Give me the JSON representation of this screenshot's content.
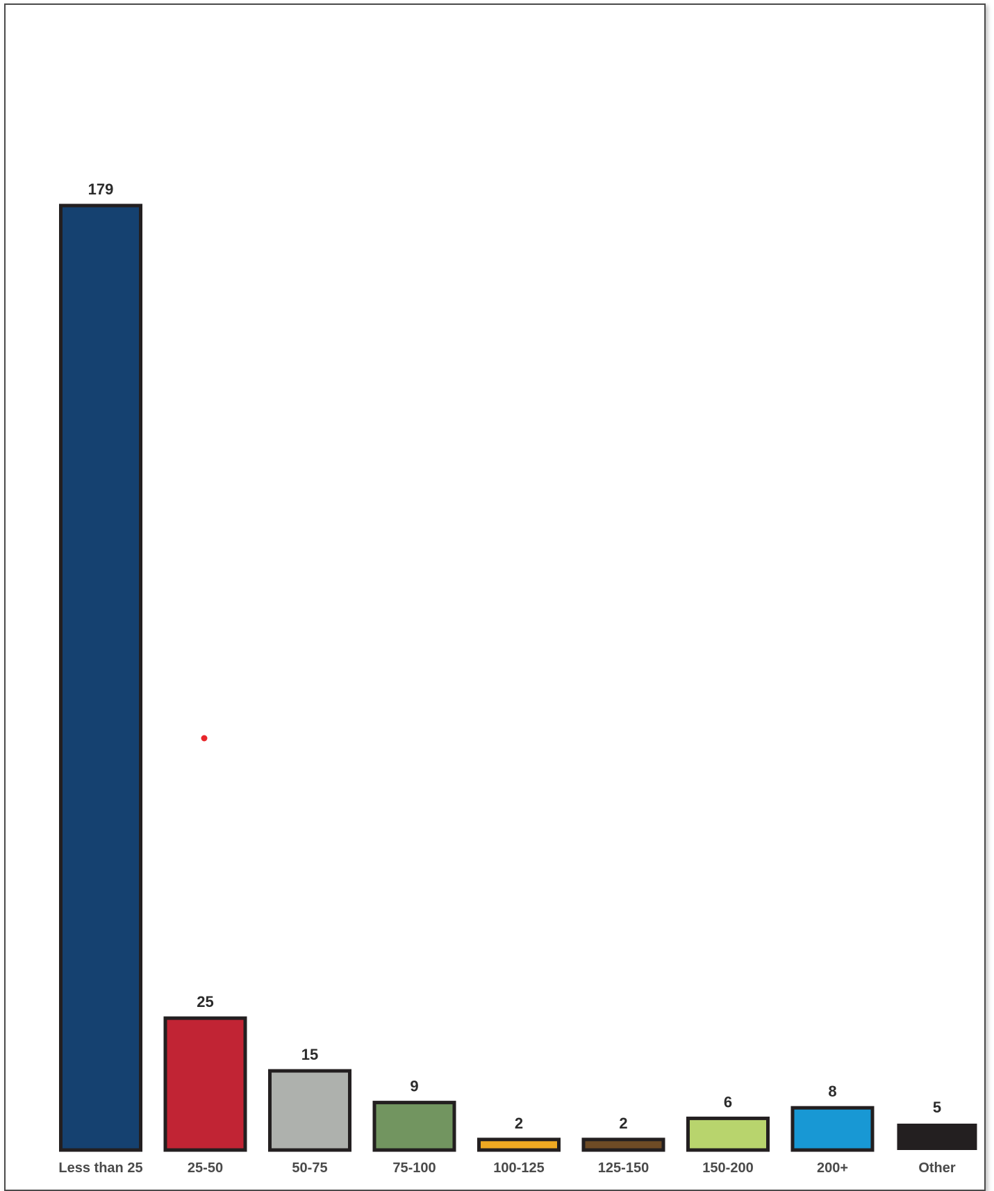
{
  "chart_data": {
    "type": "bar",
    "categories": [
      "Less than 25",
      "25-50",
      "50-75",
      "75-100",
      "100-125",
      "125-150",
      "150-200",
      "200+",
      "Other"
    ],
    "values": [
      179,
      25,
      15,
      9,
      2,
      2,
      6,
      8,
      5
    ],
    "data_labels": [
      "179",
      "25",
      "15",
      "9",
      "2",
      "2",
      "6",
      "8",
      "5"
    ],
    "colors": [
      "#154170",
      "#c12434",
      "#aeb1ad",
      "#729560",
      "#f0a922",
      "#6e4b25",
      "#b8d46d",
      "#1898d4",
      "#231f20"
    ],
    "title": "",
    "xlabel": "",
    "ylabel": "",
    "ylim": [
      0,
      179
    ],
    "grid": false,
    "legend": "none"
  }
}
